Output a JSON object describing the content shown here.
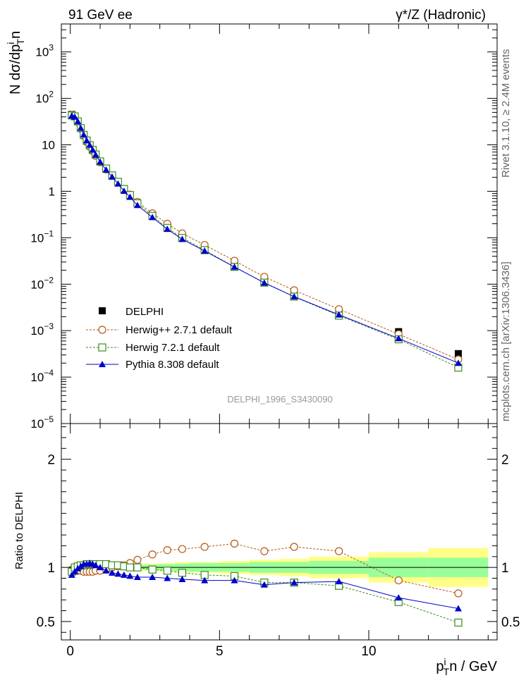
{
  "header": {
    "left_title": "91 GeV ee",
    "right_title": "γ*/Z (Hadronic)"
  },
  "side_labels": {
    "rivet": "Rivet 3.1.10, ≥ 2.4M events",
    "mcplots": "mcplots.cern.ch [arXiv:1306.3436]"
  },
  "watermark": "DELPHI_1996_S3430090",
  "colors": {
    "delphi": "#000000",
    "herwigpp": "#b25a15",
    "herwig7": "#3c8c1e",
    "pythia": "#0000cc",
    "band_yellow": "#ffff88",
    "band_green": "#99ff99"
  },
  "chart_data": [
    {
      "type": "scatter",
      "log_y": true,
      "ylabel_main": "N dσ/dp",
      "ylabel_sup": "i",
      "ylabel_sub": "T",
      "ylabel_tail": "n",
      "xlim": [
        -0.3,
        14.3
      ],
      "ylim": [
        1e-05,
        4000
      ],
      "y_ticks": [
        {
          "v": 1e-05,
          "base": "10",
          "exp": "−5"
        },
        {
          "v": 0.0001,
          "base": "10",
          "exp": "−4"
        },
        {
          "v": 0.001,
          "base": "10",
          "exp": "−3"
        },
        {
          "v": 0.01,
          "base": "10",
          "exp": "−2"
        },
        {
          "v": 0.1,
          "base": "10",
          "exp": "−1"
        },
        {
          "v": 1,
          "base": "1",
          "exp": ""
        },
        {
          "v": 10,
          "base": "10",
          "exp": ""
        },
        {
          "v": 100,
          "base": "10",
          "exp": "2"
        },
        {
          "v": 1000,
          "base": "10",
          "exp": "3"
        }
      ],
      "legend_position": "bottom-left",
      "series": [
        {
          "name": "DELPHI",
          "key": "delphi",
          "marker": "filled-square",
          "line": "none",
          "x": [
            0.05,
            0.15,
            0.25,
            0.35,
            0.45,
            0.55,
            0.65,
            0.75,
            0.85,
            1.0,
            1.2,
            1.4,
            1.6,
            1.8,
            2.0,
            2.25,
            2.75,
            3.25,
            3.75,
            4.5,
            5.5,
            6.5,
            7.5,
            9.0,
            11.0,
            13.0
          ],
          "y": [
            45,
            41,
            32,
            23,
            16,
            12,
            9.5,
            7.6,
            6.0,
            4.3,
            3.0,
            2.15,
            1.55,
            1.1,
            0.82,
            0.55,
            0.3,
            0.17,
            0.104,
            0.058,
            0.026,
            0.0125,
            0.0062,
            0.0025,
            0.00095,
            0.00032
          ]
        },
        {
          "name": "Herwig++ 2.7.1 default",
          "key": "herwigpp",
          "marker": "open-circle",
          "line": "dashed",
          "x": [
            0.05,
            0.15,
            0.25,
            0.35,
            0.45,
            0.55,
            0.65,
            0.75,
            0.85,
            1.0,
            1.2,
            1.4,
            1.6,
            1.8,
            2.0,
            2.25,
            2.75,
            3.25,
            3.75,
            4.5,
            5.5,
            6.5,
            7.5,
            9.0,
            11.0,
            13.0
          ],
          "y": [
            44,
            40,
            31,
            22,
            15.5,
            11.5,
            9.1,
            7.4,
            5.8,
            4.2,
            2.95,
            2.15,
            1.56,
            1.12,
            0.85,
            0.59,
            0.335,
            0.2,
            0.124,
            0.07,
            0.032,
            0.0144,
            0.0074,
            0.0029,
            0.00084,
            0.00024
          ]
        },
        {
          "name": "Herwig 7.2.1 default",
          "key": "herwig7",
          "marker": "open-square",
          "line": "dashed",
          "x": [
            0.05,
            0.15,
            0.25,
            0.35,
            0.45,
            0.55,
            0.65,
            0.75,
            0.85,
            1.0,
            1.2,
            1.4,
            1.6,
            1.8,
            2.0,
            2.25,
            2.75,
            3.25,
            3.75,
            4.5,
            5.5,
            6.5,
            7.5,
            9.0,
            11.0,
            13.0
          ],
          "y": [
            43,
            41,
            32,
            23,
            16.3,
            12.4,
            9.8,
            7.8,
            6.2,
            4.4,
            3.1,
            2.2,
            1.6,
            1.12,
            0.83,
            0.55,
            0.295,
            0.163,
            0.099,
            0.054,
            0.0236,
            0.0108,
            0.0054,
            0.0021,
            0.00065,
            0.00016
          ]
        },
        {
          "name": "Pythia 8.308 default",
          "key": "pythia",
          "marker": "filled-triangle",
          "line": "solid",
          "x": [
            0.05,
            0.15,
            0.25,
            0.35,
            0.45,
            0.55,
            0.65,
            0.75,
            0.85,
            1.0,
            1.2,
            1.4,
            1.6,
            1.8,
            2.0,
            2.25,
            2.75,
            3.25,
            3.75,
            4.5,
            5.5,
            6.5,
            7.5,
            9.0,
            11.0,
            13.0
          ],
          "y": [
            42,
            40,
            32,
            23,
            16.5,
            12.4,
            9.9,
            7.8,
            6.1,
            4.3,
            2.9,
            2.05,
            1.45,
            1.01,
            0.75,
            0.5,
            0.275,
            0.153,
            0.093,
            0.052,
            0.0235,
            0.0107,
            0.0054,
            0.0022,
            0.00068,
            0.0002
          ]
        }
      ]
    },
    {
      "type": "line",
      "ylabel": "Ratio to DELPHI",
      "xlabel_base": "p",
      "xlabel_sup": "i",
      "xlabel_sub": "T",
      "xlabel_tail": "n / GeV",
      "xlim": [
        -0.3,
        14.3
      ],
      "ylim": [
        0.33,
        2.33
      ],
      "x_ticks": [
        0,
        5,
        10
      ],
      "y_ticks": [
        0.5,
        1,
        2
      ],
      "bands": {
        "edges": [
          0,
          0.1,
          0.2,
          0.3,
          0.4,
          0.5,
          0.6,
          0.7,
          0.8,
          0.9,
          1.1,
          1.3,
          1.5,
          1.7,
          1.9,
          2.1,
          2.5,
          3.0,
          3.5,
          4.0,
          5.0,
          6.0,
          7.0,
          8.0,
          10.0,
          12.0,
          14.0
        ],
        "yellow_half": [
          0.02,
          0.02,
          0.02,
          0.02,
          0.02,
          0.02,
          0.02,
          0.02,
          0.02,
          0.02,
          0.02,
          0.02,
          0.025,
          0.025,
          0.03,
          0.03,
          0.035,
          0.04,
          0.05,
          0.05,
          0.06,
          0.07,
          0.08,
          0.1,
          0.14,
          0.18
        ],
        "green_half": [
          0.01,
          0.01,
          0.01,
          0.01,
          0.01,
          0.01,
          0.01,
          0.01,
          0.012,
          0.012,
          0.014,
          0.015,
          0.016,
          0.017,
          0.018,
          0.02,
          0.025,
          0.03,
          0.035,
          0.04,
          0.04,
          0.05,
          0.05,
          0.06,
          0.09,
          0.09
        ]
      },
      "series": [
        {
          "name": "Herwig++ 2.7.1 default",
          "key": "herwigpp",
          "marker": "open-circle",
          "line": "dashed",
          "x": [
            0.05,
            0.15,
            0.25,
            0.35,
            0.45,
            0.55,
            0.65,
            0.75,
            0.85,
            1.0,
            1.2,
            1.4,
            1.6,
            1.8,
            2.0,
            2.25,
            2.75,
            3.25,
            3.75,
            4.5,
            5.5,
            6.5,
            7.5,
            9.0,
            11.0,
            13.0
          ],
          "y": [
            0.98,
            0.98,
            0.97,
            0.97,
            0.96,
            0.96,
            0.96,
            0.96,
            0.97,
            0.97,
            0.98,
            1.0,
            1.01,
            1.02,
            1.04,
            1.07,
            1.12,
            1.16,
            1.17,
            1.19,
            1.22,
            1.15,
            1.19,
            1.15,
            0.88,
            0.76
          ]
        },
        {
          "name": "Herwig 7.2.1 default",
          "key": "herwig7",
          "marker": "open-square",
          "line": "dashed",
          "x": [
            0.05,
            0.15,
            0.25,
            0.35,
            0.45,
            0.55,
            0.65,
            0.75,
            0.85,
            1.0,
            1.2,
            1.4,
            1.6,
            1.8,
            2.0,
            2.25,
            2.75,
            3.25,
            3.75,
            4.5,
            5.5,
            6.5,
            7.5,
            9.0,
            11.0,
            13.0
          ],
          "y": [
            0.96,
            1.0,
            1.01,
            1.02,
            1.02,
            1.03,
            1.03,
            1.03,
            1.03,
            1.03,
            1.03,
            1.02,
            1.02,
            1.01,
            1.0,
            1.0,
            0.98,
            0.97,
            0.95,
            0.93,
            0.92,
            0.86,
            0.86,
            0.83,
            0.68,
            0.49
          ]
        },
        {
          "name": "Pythia 8.308 default",
          "key": "pythia",
          "marker": "filled-triangle",
          "line": "solid",
          "x": [
            0.05,
            0.15,
            0.25,
            0.35,
            0.45,
            0.55,
            0.65,
            0.75,
            0.85,
            1.0,
            1.2,
            1.4,
            1.6,
            1.8,
            2.0,
            2.25,
            2.75,
            3.25,
            3.75,
            4.5,
            5.5,
            6.5,
            7.5,
            9.0,
            11.0,
            13.0
          ],
          "y": [
            0.93,
            0.96,
            0.99,
            1.01,
            1.03,
            1.03,
            1.04,
            1.03,
            1.02,
            1.0,
            0.97,
            0.95,
            0.94,
            0.93,
            0.92,
            0.91,
            0.91,
            0.9,
            0.89,
            0.88,
            0.88,
            0.84,
            0.86,
            0.87,
            0.72,
            0.62
          ]
        }
      ]
    }
  ]
}
